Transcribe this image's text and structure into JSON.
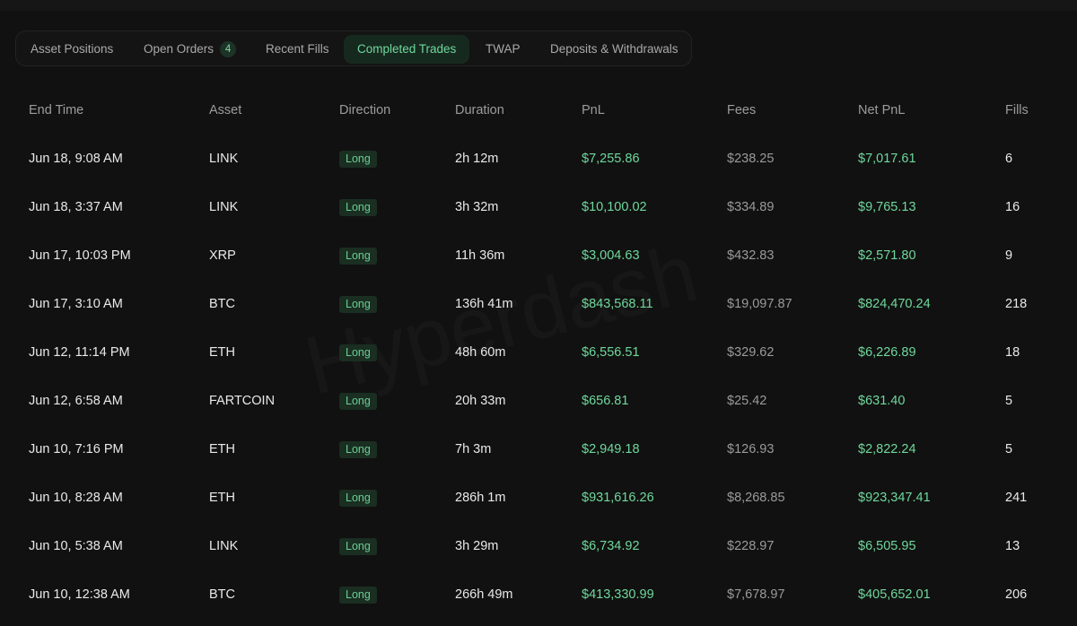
{
  "tabs": [
    {
      "label": "Asset Positions"
    },
    {
      "label": "Open Orders",
      "badge": "4"
    },
    {
      "label": "Recent Fills"
    },
    {
      "label": "Completed Trades",
      "active": true
    },
    {
      "label": "TWAP"
    },
    {
      "label": "Deposits & Withdrawals"
    }
  ],
  "watermark": "Hyperdash",
  "columns": {
    "end_time": "End Time",
    "asset": "Asset",
    "direction": "Direction",
    "duration": "Duration",
    "pnl": "PnL",
    "fees": "Fees",
    "net_pnl": "Net PnL",
    "fills": "Fills"
  },
  "rows": [
    {
      "end_time": "Jun 18, 9:08 AM",
      "asset": "LINK",
      "direction": "Long",
      "duration": "2h 12m",
      "pnl": "$7,255.86",
      "fees": "$238.25",
      "net_pnl": "$7,017.61",
      "fills": "6"
    },
    {
      "end_time": "Jun 18, 3:37 AM",
      "asset": "LINK",
      "direction": "Long",
      "duration": "3h 32m",
      "pnl": "$10,100.02",
      "fees": "$334.89",
      "net_pnl": "$9,765.13",
      "fills": "16"
    },
    {
      "end_time": "Jun 17, 10:03 PM",
      "asset": "XRP",
      "direction": "Long",
      "duration": "11h 36m",
      "pnl": "$3,004.63",
      "fees": "$432.83",
      "net_pnl": "$2,571.80",
      "fills": "9"
    },
    {
      "end_time": "Jun 17, 3:10 AM",
      "asset": "BTC",
      "direction": "Long",
      "duration": "136h 41m",
      "pnl": "$843,568.11",
      "fees": "$19,097.87",
      "net_pnl": "$824,470.24",
      "fills": "218"
    },
    {
      "end_time": "Jun 12, 11:14 PM",
      "asset": "ETH",
      "direction": "Long",
      "duration": "48h 60m",
      "pnl": "$6,556.51",
      "fees": "$329.62",
      "net_pnl": "$6,226.89",
      "fills": "18"
    },
    {
      "end_time": "Jun 12, 6:58 AM",
      "asset": "FARTCOIN",
      "direction": "Long",
      "duration": "20h 33m",
      "pnl": "$656.81",
      "fees": "$25.42",
      "net_pnl": "$631.40",
      "fills": "5"
    },
    {
      "end_time": "Jun 10, 7:16 PM",
      "asset": "ETH",
      "direction": "Long",
      "duration": "7h 3m",
      "pnl": "$2,949.18",
      "fees": "$126.93",
      "net_pnl": "$2,822.24",
      "fills": "5"
    },
    {
      "end_time": "Jun 10, 8:28 AM",
      "asset": "ETH",
      "direction": "Long",
      "duration": "286h 1m",
      "pnl": "$931,616.26",
      "fees": "$8,268.85",
      "net_pnl": "$923,347.41",
      "fills": "241"
    },
    {
      "end_time": "Jun 10, 5:38 AM",
      "asset": "LINK",
      "direction": "Long",
      "duration": "3h 29m",
      "pnl": "$6,734.92",
      "fees": "$228.97",
      "net_pnl": "$6,505.95",
      "fills": "13"
    },
    {
      "end_time": "Jun 10, 12:38 AM",
      "asset": "BTC",
      "direction": "Long",
      "duration": "266h 49m",
      "pnl": "$413,330.99",
      "fees": "$7,678.97",
      "net_pnl": "$405,652.01",
      "fills": "206"
    }
  ],
  "colors": {
    "background": "#111111",
    "positive": "#6fd89c",
    "long_badge_bg": "#1a2e22",
    "tab_active_bg": "#16291f"
  }
}
